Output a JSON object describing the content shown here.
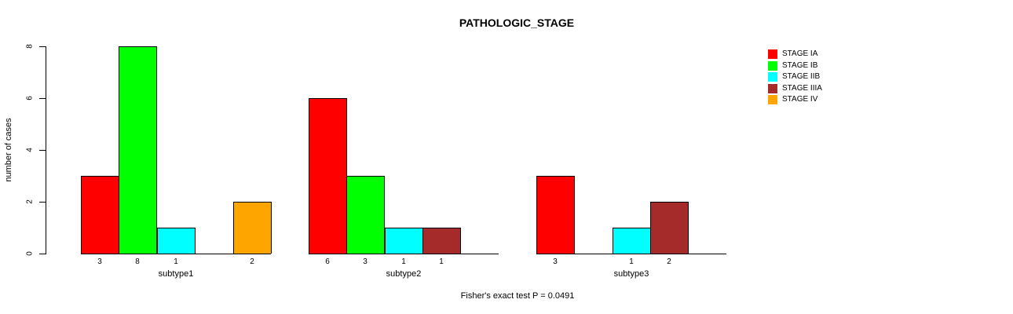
{
  "chart_data": {
    "type": "bar",
    "title": "PATHOLOGIC_STAGE",
    "ylabel": "number of cases",
    "ylim": [
      0,
      8
    ],
    "yticks": [
      0,
      2,
      4,
      6,
      8
    ],
    "categories": [
      "subtype1",
      "subtype2",
      "subtype3"
    ],
    "series": [
      {
        "name": "STAGE IA",
        "color": "#FF0000",
        "values": [
          3,
          6,
          3
        ]
      },
      {
        "name": "STAGE IB",
        "color": "#00FF00",
        "values": [
          8,
          3,
          0
        ]
      },
      {
        "name": "STAGE IIB",
        "color": "#00FFFF",
        "values": [
          1,
          1,
          1
        ]
      },
      {
        "name": "STAGE IIIA",
        "color": "#A52A2A",
        "values": [
          0,
          1,
          2
        ]
      },
      {
        "name": "STAGE IV",
        "color": "#FFA500",
        "values": [
          2,
          0,
          0
        ]
      }
    ],
    "bar_value_labels_shown": true,
    "zero_bars_hidden": true,
    "legend_position": "top-right",
    "grid": false,
    "footer": "Fisher's exact test P = 0.0491",
    "colors": {
      "background": "#FFFFFF",
      "axis": "#000000",
      "text": "#000000"
    }
  }
}
